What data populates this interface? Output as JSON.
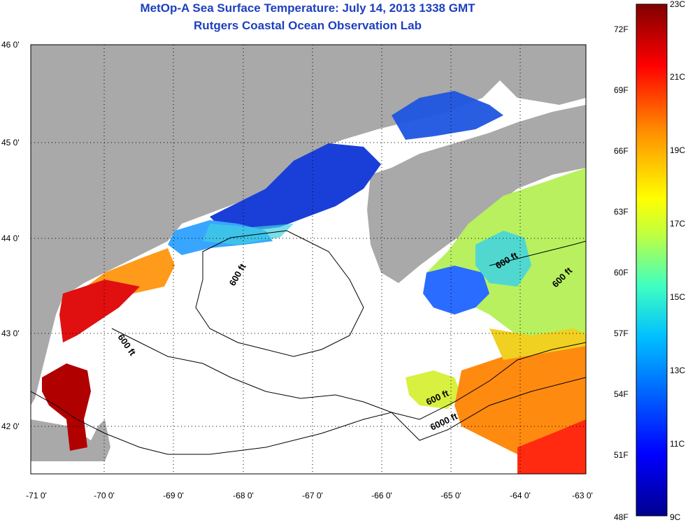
{
  "header": {
    "title": "MetOp-A Sea Surface Temperature:  July 14, 2013 1338 GMT",
    "subtitle": "Rutgers Coastal Ocean Observation Lab"
  },
  "map": {
    "lon_range": [
      -71,
      -63
    ],
    "lat_range": [
      41.5,
      46
    ],
    "x_ticks": [
      "-71 0'",
      "-70 0'",
      "-69 0'",
      "-68 0'",
      "-67 0'",
      "-66 0'",
      "-65 0'",
      "-64 0'",
      "-63 0'"
    ],
    "y_ticks": [
      "46 0'",
      "45 0'",
      "44 0'",
      "43 0'",
      "42 0'"
    ],
    "contour_labels": [
      "600 ft",
      "600 ft",
      "600 ft",
      "600 ft",
      "600 ft",
      "6000 ft"
    ],
    "land_color": "#a9a9a9",
    "no_data_color": "#ffffff"
  },
  "colorbar": {
    "fahrenheit_labels": [
      "72F",
      "69F",
      "66F",
      "63F",
      "60F",
      "57F",
      "54F",
      "51F",
      "48F"
    ],
    "celsius_labels": [
      "23C",
      "21C",
      "19C",
      "17C",
      "15C",
      "13C",
      "11C",
      "9C"
    ],
    "range_c": [
      9,
      23
    ],
    "colors": [
      "#00008f",
      "#0000ff",
      "#0080ff",
      "#00ffff",
      "#80ff80",
      "#ffff00",
      "#ff8000",
      "#ff0000",
      "#800000"
    ]
  }
}
